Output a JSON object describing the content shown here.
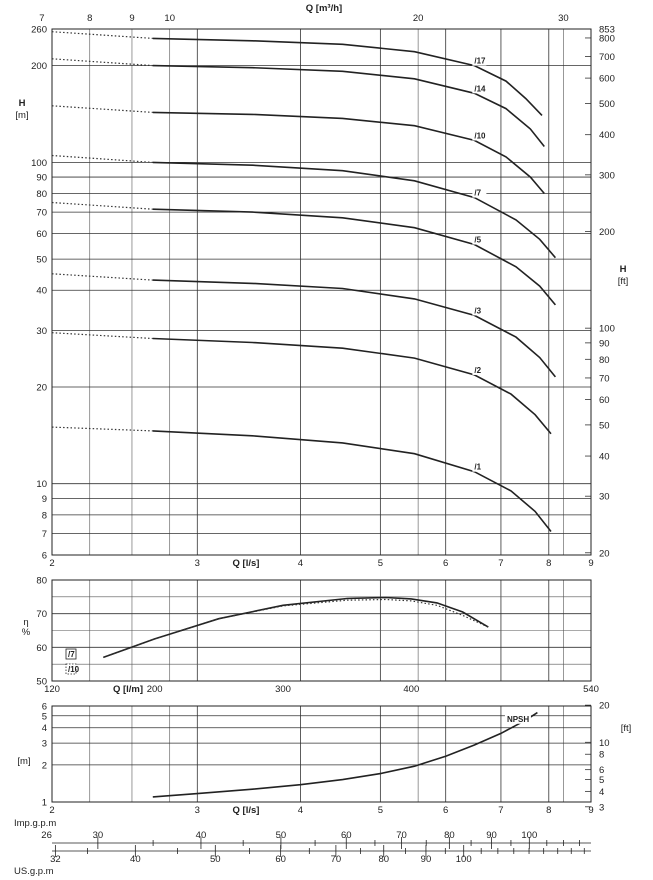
{
  "chart_data": [
    {
      "id": "head",
      "type": "line",
      "x_scale": "log",
      "y_scale": "log",
      "xlabel": "Q [l/s]",
      "ylabel": "H [m]",
      "ylabel_top": "H",
      "ylabel_unit": "[m]",
      "xlim": [
        2,
        9
      ],
      "ylim": [
        6,
        260
      ],
      "x_ticks": [
        2,
        3,
        4,
        5,
        6,
        7,
        8,
        9
      ],
      "y_ticks": [
        6,
        7,
        8,
        9,
        10,
        20,
        30,
        40,
        50,
        60,
        70,
        80,
        90,
        100,
        200,
        260
      ],
      "top_axis": {
        "label": "Q [m³/h]",
        "ticks": [
          7,
          8,
          9,
          10,
          20,
          30
        ]
      },
      "right_axis": {
        "label_top": "H",
        "label_unit": "[ft]",
        "ticks": [
          20,
          30,
          40,
          50,
          60,
          70,
          80,
          90,
          100,
          200,
          300,
          400,
          500,
          600,
          700,
          800,
          853
        ]
      },
      "series": [
        {
          "name": "/1",
          "x": [
            2.0,
            2.65,
            3.5,
            4.5,
            5.5,
            6.5,
            7.2,
            7.7,
            8.05
          ],
          "y": [
            15.0,
            14.6,
            14.1,
            13.4,
            12.4,
            10.9,
            9.5,
            8.2,
            7.1
          ],
          "dotted_until": 2.65
        },
        {
          "name": "/2",
          "x": [
            2.0,
            2.65,
            3.5,
            4.5,
            5.5,
            6.5,
            7.2,
            7.7,
            8.05
          ],
          "y": [
            29.5,
            28.3,
            27.5,
            26.4,
            24.6,
            21.8,
            19.0,
            16.4,
            14.3
          ],
          "dotted_until": 2.65
        },
        {
          "name": "/3",
          "x": [
            2.0,
            2.65,
            3.5,
            4.5,
            5.5,
            6.5,
            7.3,
            7.8,
            8.15
          ],
          "y": [
            45.0,
            43.0,
            42.0,
            40.5,
            37.6,
            33.4,
            28.6,
            24.7,
            21.5
          ],
          "dotted_until": 2.65
        },
        {
          "name": "/5",
          "x": [
            2.0,
            2.65,
            3.5,
            4.5,
            5.5,
            6.5,
            7.3,
            7.8,
            8.15
          ],
          "y": [
            75.0,
            71.5,
            70.0,
            67.2,
            62.6,
            55.5,
            47.3,
            41.2,
            36.0
          ],
          "dotted_until": 2.65
        },
        {
          "name": "/7",
          "x": [
            2.0,
            2.65,
            3.5,
            4.5,
            5.5,
            6.5,
            7.3,
            7.8,
            8.15
          ],
          "y": [
            105.0,
            100.0,
            98.0,
            94.2,
            87.6,
            77.7,
            66.2,
            57.6,
            50.5
          ],
          "dotted_until": 2.65
        },
        {
          "name": "/10",
          "x": [
            2.0,
            2.65,
            3.5,
            4.5,
            5.5,
            6.5,
            7.1,
            7.6,
            7.9
          ],
          "y": [
            150.0,
            143.0,
            141.0,
            137.0,
            130.0,
            117.0,
            104.0,
            90.0,
            80.0
          ],
          "dotted_until": 2.65
        },
        {
          "name": "/14",
          "x": [
            2.0,
            2.65,
            3.5,
            4.5,
            5.5,
            6.5,
            7.1,
            7.6,
            7.9
          ],
          "y": [
            210.0,
            200.0,
            197.0,
            192.0,
            182.0,
            164.0,
            147.0,
            127.0,
            112.0
          ],
          "dotted_until": 2.65
        },
        {
          "name": "/17",
          "x": [
            2.0,
            2.65,
            3.5,
            4.5,
            5.5,
            6.5,
            7.1,
            7.5,
            7.85
          ],
          "y": [
            255.0,
            243.0,
            239.0,
            233.0,
            221.0,
            200.0,
            179.0,
            158.0,
            140.0
          ],
          "dotted_until": 2.65
        }
      ]
    },
    {
      "id": "efficiency",
      "type": "line",
      "ylabel": "η %",
      "ylabel_top": "η",
      "ylabel_unit": "%",
      "xlabel": "Q [l/m]",
      "xlim": [
        120,
        540
      ],
      "ylim": [
        50,
        80
      ],
      "x_ticks": [
        120,
        200,
        300,
        400,
        540
      ],
      "y_ticks": [
        50,
        60,
        70,
        80
      ],
      "legend": [
        "/7",
        "/10"
      ],
      "series": [
        {
          "name": "/7",
          "x": [
            160,
            200,
            250,
            300,
            350,
            380,
            400,
            420,
            440,
            460
          ],
          "y": [
            57,
            62.5,
            68.5,
            72.5,
            74.5,
            74.8,
            74.4,
            73.2,
            70.5,
            66
          ],
          "style": "solid"
        },
        {
          "name": "/10",
          "x": [
            160,
            200,
            250,
            300,
            350,
            380,
            400,
            420,
            440,
            460
          ],
          "y": [
            57,
            62.5,
            68.5,
            72.3,
            74.0,
            74.2,
            73.8,
            72.5,
            69.5,
            66
          ],
          "style": "dotted"
        }
      ]
    },
    {
      "id": "npsh",
      "type": "line",
      "x_scale": "log",
      "y_scale": "log",
      "xlabel": "Q [l/s]",
      "ylabel": "[m]",
      "xlim": [
        2,
        9
      ],
      "ylim": [
        1,
        6
      ],
      "x_ticks": [
        2,
        3,
        4,
        5,
        6,
        7,
        8,
        9
      ],
      "y_ticks": [
        1,
        2,
        3,
        4,
        5,
        6
      ],
      "right_axis": {
        "label": "[ft]",
        "ticks": [
          3,
          4,
          5,
          6,
          8,
          10,
          20
        ]
      },
      "series": [
        {
          "name": "NPSH",
          "x": [
            2.65,
            3.0,
            3.5,
            4.0,
            4.5,
            5.0,
            5.5,
            6.0,
            6.5,
            7.0,
            7.5,
            7.75
          ],
          "y": [
            1.1,
            1.17,
            1.27,
            1.38,
            1.52,
            1.7,
            1.95,
            2.35,
            2.9,
            3.6,
            4.6,
            5.3
          ]
        }
      ]
    },
    {
      "id": "imp-gpm-axis",
      "type": "axis",
      "label": "Imp.g.p.m",
      "ticks": [
        26,
        30,
        40,
        50,
        60,
        70,
        80,
        90,
        100
      ]
    },
    {
      "id": "us-gpm-axis",
      "type": "axis",
      "label": "US.g.p.m",
      "ticks": [
        32,
        40,
        50,
        60,
        70,
        80,
        90,
        100
      ]
    }
  ]
}
